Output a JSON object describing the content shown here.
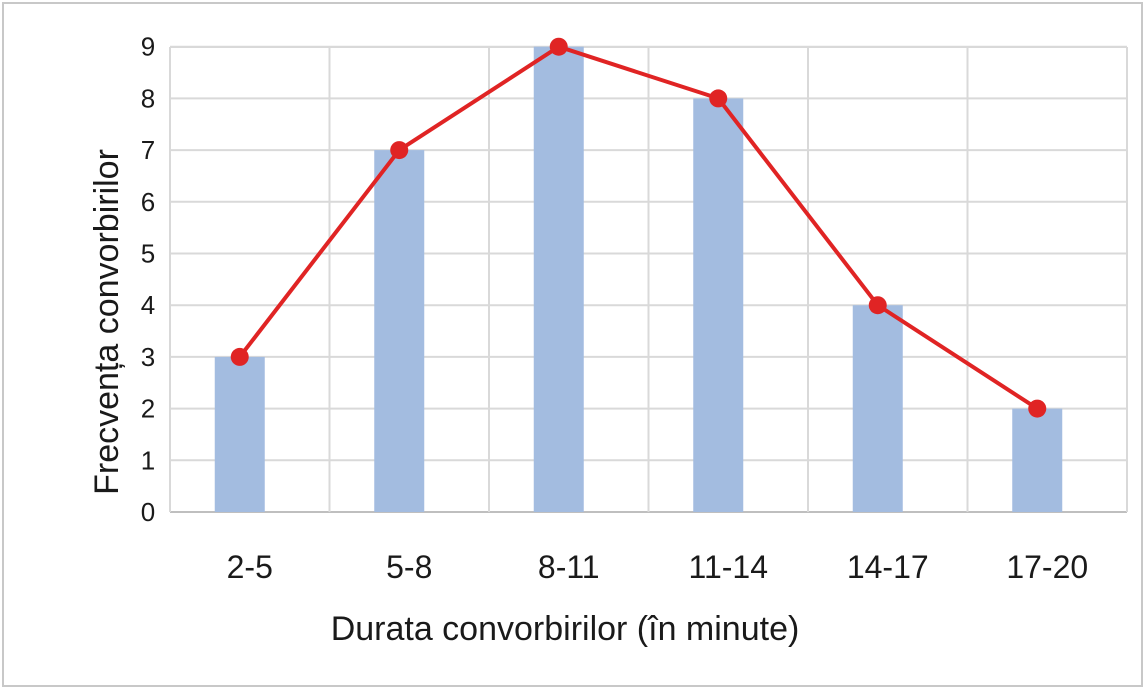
{
  "chart_data": {
    "type": "bar",
    "categories": [
      "2-5",
      "5-8",
      "8-11",
      "11-14",
      "14-17",
      "17-20"
    ],
    "values": [
      3,
      7,
      9,
      8,
      4,
      2
    ],
    "series": [
      {
        "type": "bar",
        "values": [
          3,
          7,
          9,
          8,
          4,
          2
        ]
      },
      {
        "type": "line",
        "values": [
          3,
          7,
          9,
          8,
          4,
          2
        ]
      }
    ],
    "title": "",
    "xlabel": "Durata convorbirilor (în minute)",
    "ylabel": "Frecvența convorbirilor",
    "ylim": [
      0,
      9
    ],
    "yticks": [
      "0",
      "1",
      "2",
      "3",
      "4",
      "5",
      "6",
      "7",
      "8",
      "9"
    ],
    "grid": true,
    "legend": "none",
    "colors": {
      "bar": "#a3bce0",
      "line": "#e02424",
      "grid": "#d9d9d9"
    }
  }
}
